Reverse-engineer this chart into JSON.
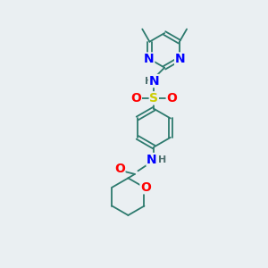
{
  "bg_color": "#eaeff2",
  "atom_colors": {
    "C": "#2d7a6e",
    "N": "#0000ff",
    "O": "#ff0000",
    "S": "#cccc00",
    "H": "#507070"
  },
  "bond_color": "#2d7a6e",
  "font_size": 10,
  "font_size_small": 8,
  "lw": 1.3
}
